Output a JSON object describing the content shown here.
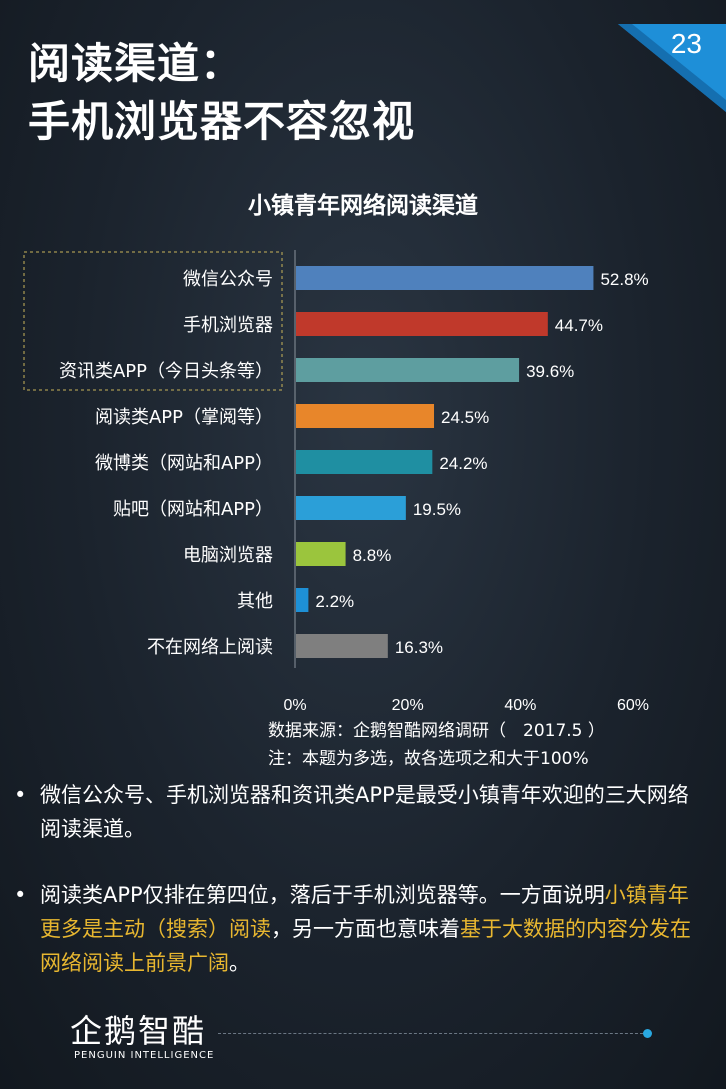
{
  "header": {
    "title_line1": "阅读渠道：",
    "title_line2": "手机浏览器不容忽视",
    "page_number": "23",
    "accent_color": "#1e8fd8"
  },
  "chart_data": {
    "type": "bar",
    "orientation": "horizontal",
    "title": "小镇青年网络阅读渠道",
    "categories": [
      "微信公众号",
      "手机浏览器",
      "资讯类APP（今日头条等）",
      "阅读类APP（掌阅等）",
      "微博类（网站和APP）",
      "贴吧（网站和APP）",
      "电脑浏览器",
      "其他",
      "不在网络上阅读"
    ],
    "values": [
      52.8,
      44.7,
      39.6,
      24.5,
      24.2,
      19.5,
      8.8,
      2.2,
      16.3
    ],
    "value_labels": [
      "52.8%",
      "44.7%",
      "39.6%",
      "24.5%",
      "24.2%",
      "19.5%",
      "8.8%",
      "2.2%",
      "16.3%"
    ],
    "colors": [
      "#4f81bd",
      "#c0392b",
      "#5e9ea0",
      "#e8862a",
      "#1f8fa2",
      "#2b9fd8",
      "#9bc53d",
      "#1e90d6",
      "#7f7f7f"
    ],
    "x_ticks": [
      "0%",
      "20%",
      "40%",
      "60%"
    ],
    "xlim": [
      0,
      60
    ],
    "highlighted_top_n": 3,
    "grid": false,
    "xlabel": "",
    "ylabel": ""
  },
  "notes": {
    "source": "数据来源：企鹅智酷网络调研（　2017.5 ）",
    "note": "注：本题为多选，故各选项之和大于100%"
  },
  "bullets": {
    "symbol": "•",
    "b1": "微信公众号、手机浏览器和资讯类APP是最受小镇青年欢迎的三大网络阅读渠道。",
    "b2_p1": "阅读类APP仅排在第四位，落后于手机浏览器等。一方面说明",
    "b2_hl1": "小镇青年更多是主动（搜索）阅读",
    "b2_p2": "，另一方面也意味着",
    "b2_hl2": "基于大数据的内容分发在网络阅读上前景广阔",
    "b2_p3": "。"
  },
  "footer": {
    "logo": "企鹅智酷",
    "logo_sub": "PENGUIN INTELLIGENCE"
  }
}
